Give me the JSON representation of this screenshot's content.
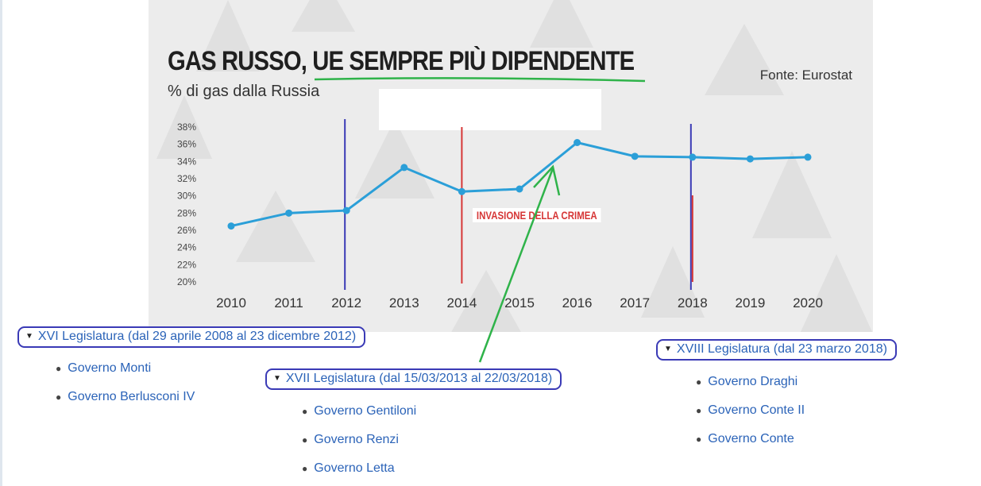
{
  "chart_data": {
    "type": "line",
    "title": "GAS RUSSO, UE SEMPRE PIÙ DIPENDENTE",
    "subtitle": "% di gas dalla Russia",
    "source": "Fonte: Eurostat",
    "x": [
      "2010",
      "2011",
      "2012",
      "2013",
      "2014",
      "2015",
      "2016",
      "2017",
      "2018",
      "2019",
      "2020"
    ],
    "series": [
      {
        "values": [
          26.5,
          28.0,
          28.3,
          33.3,
          30.5,
          30.8,
          36.2,
          34.6,
          34.5,
          34.3,
          34.5
        ]
      }
    ],
    "ylim": [
      20,
      38
    ],
    "yticks": [
      "20%",
      "22%",
      "24%",
      "26%",
      "28%",
      "30%",
      "32%",
      "34%",
      "36%",
      "38%"
    ],
    "line_color": "#2b9fd8",
    "annotation": {
      "text": "INVASIONE DELLA CRIMEA",
      "x": "2014",
      "color": "#d63636"
    },
    "markers": [
      {
        "x": "2012",
        "color": "#3a3ab6"
      },
      {
        "x": "2018",
        "color": "#3a3ab6"
      }
    ]
  },
  "legislature": [
    {
      "label": "XVI Legislatura (dal 29 aprile 2008 al 23 dicembre 2012)",
      "governments": [
        "Governo Monti",
        "Governo Berlusconi IV"
      ]
    },
    {
      "label": "XVII Legislatura (dal 15/03/2013 al 22/03/2018)",
      "governments": [
        "Governo Gentiloni",
        "Governo Renzi",
        "Governo Letta"
      ]
    },
    {
      "label": "XVIII Legislatura (dal 23 marzo 2018)",
      "governments": [
        "Governo Draghi",
        "Governo Conte II",
        "Governo Conte"
      ]
    }
  ],
  "colors": {
    "link": "#2b63b8",
    "frame": "#3a3ab6",
    "arrow": "#2fb34a"
  }
}
